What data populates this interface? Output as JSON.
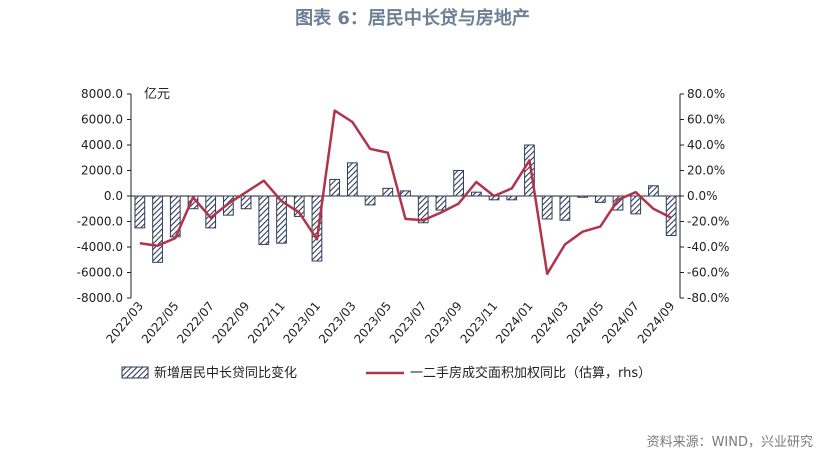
{
  "title": "图表 6：居民中长贷与房地产",
  "source": "资料来源：WIND，兴业研究",
  "colors": {
    "bar_stroke": "#2e3c5b",
    "bar_fill": "#b9c8dc",
    "line": "#b0344a",
    "axis": "#222222",
    "title": "#6d7f95"
  },
  "chart_data": {
    "type": "bar",
    "categories": [
      "2022/03",
      "2022/04",
      "2022/05",
      "2022/06",
      "2022/07",
      "2022/08",
      "2022/09",
      "2022/10",
      "2022/11",
      "2022/12",
      "2023/01",
      "2023/02",
      "2023/03",
      "2023/04",
      "2023/05",
      "2023/06",
      "2023/07",
      "2023/08",
      "2023/09",
      "2023/10",
      "2023/11",
      "2023/12",
      "2024/01",
      "2024/02",
      "2024/03",
      "2024/04",
      "2024/05",
      "2024/06",
      "2024/07",
      "2024/08",
      "2024/09"
    ],
    "x_tick_labels": [
      "2022/03",
      "2022/05",
      "2022/07",
      "2022/09",
      "2022/11",
      "2023/01",
      "2023/03",
      "2023/05",
      "2023/07",
      "2023/09",
      "2023/11",
      "2024/01",
      "2024/03",
      "2024/05",
      "2024/07",
      "2024/09"
    ],
    "left_axis": {
      "unit": "亿元",
      "ylim": [
        -8000,
        8000
      ],
      "ticks": [
        "8000.0",
        "6000.0",
        "4000.0",
        "2000.0",
        "0.0",
        "-2000.0",
        "-4000.0",
        "-6000.0",
        "-8000.0"
      ]
    },
    "right_axis": {
      "ylim": [
        -80,
        80
      ],
      "ticks": [
        "80.0%",
        "60.0%",
        "40.0%",
        "20.0%",
        "0.0%",
        "-20.0%",
        "-40.0%",
        "-60.0%",
        "-80.0%"
      ]
    },
    "series": [
      {
        "name": "新增居民中长贷同比变化",
        "type": "bar",
        "axis": "left",
        "values": [
          -2500,
          -5200,
          -3200,
          -1000,
          -2500,
          -1500,
          -1000,
          -3800,
          -3700,
          -1600,
          -5100,
          1300,
          2600,
          -700,
          600,
          400,
          -2100,
          -1100,
          2000,
          300,
          -300,
          -300,
          4000,
          -1800,
          -1900,
          -100,
          -500,
          -1100,
          -1400,
          800,
          -3100
        ]
      },
      {
        "name": "一二手房成交面积加权同比（估算，rhs）",
        "type": "line",
        "axis": "right",
        "values": [
          -37,
          -39,
          -33,
          -1,
          -17,
          -6,
          3,
          12,
          -4,
          -13,
          -34,
          67,
          58,
          37,
          34,
          -18,
          -19,
          -13,
          -6,
          11,
          0,
          6,
          28,
          -61,
          -38,
          -28,
          -24,
          -3,
          3,
          -10,
          -17
        ]
      }
    ],
    "grid": false,
    "legend_position": "bottom"
  }
}
